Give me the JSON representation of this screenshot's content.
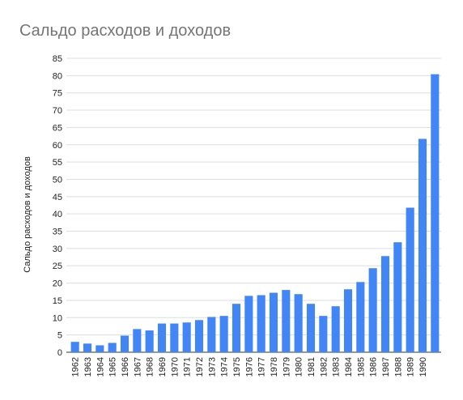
{
  "chart_data": {
    "type": "bar",
    "title": "Сальдо расходов и доходов",
    "y_label": "Сальдо расходов и доходов",
    "categories": [
      "1962",
      "1963",
      "1964",
      "1965",
      "1966",
      "1967",
      "1968",
      "1969",
      "1970",
      "1971",
      "1972",
      "1973",
      "1974",
      "1975",
      "1976",
      "1977",
      "1978",
      "1979",
      "1980",
      "1981",
      "1982",
      "1983",
      "1984",
      "1985",
      "1986",
      "1987",
      "1988",
      "1989",
      "1990",
      null
    ],
    "values": [
      3,
      2.5,
      2,
      2.7,
      4.8,
      6.7,
      6.3,
      8.3,
      8.3,
      8.6,
      9.3,
      10.2,
      10.5,
      14,
      16.3,
      16.5,
      17.2,
      18,
      16.8,
      14,
      10.5,
      13.3,
      18.2,
      20.3,
      24.3,
      27.8,
      31.8,
      41.8,
      61.7,
      80.4
    ],
    "color": "#4285f4",
    "ylim": [
      0,
      85
    ],
    "yticks": [
      0,
      5,
      10,
      15,
      20,
      25,
      30,
      35,
      40,
      45,
      50,
      55,
      60,
      65,
      70,
      75,
      80,
      85
    ],
    "grid": true
  }
}
